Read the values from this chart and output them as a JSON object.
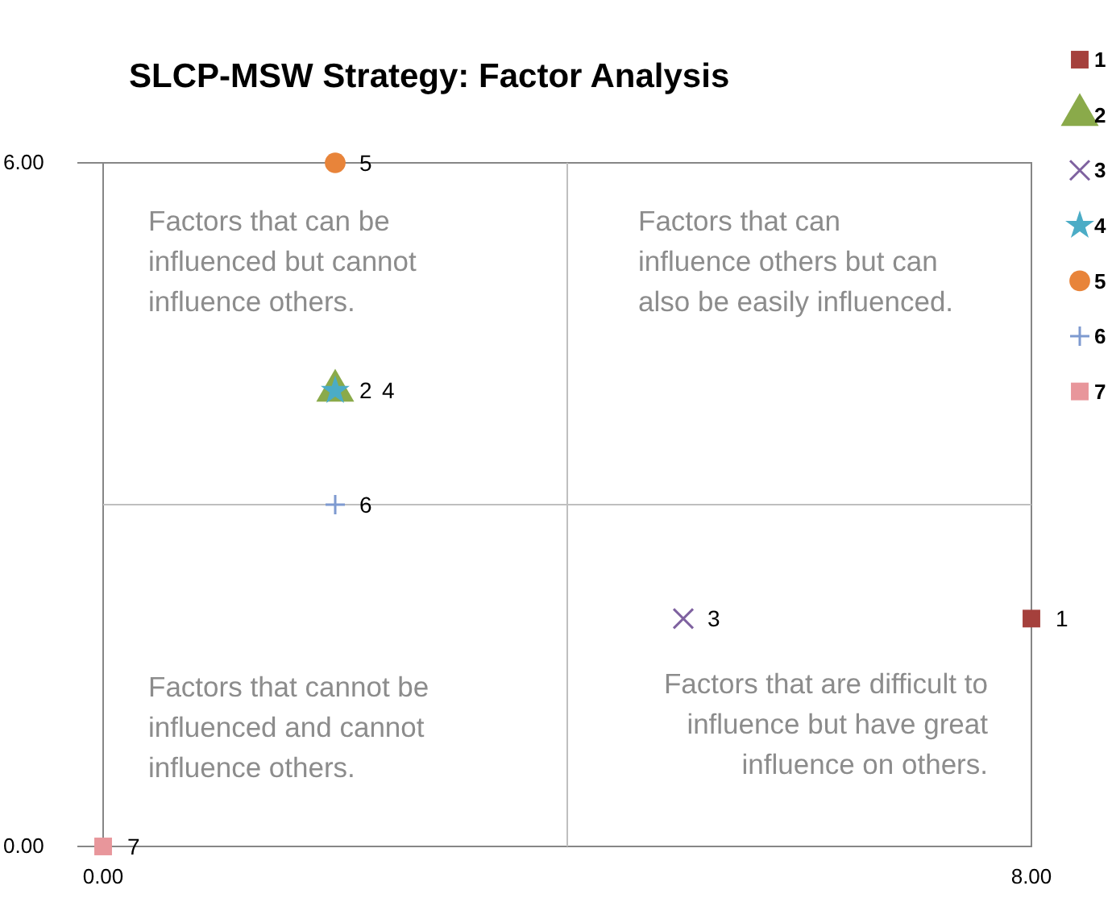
{
  "chart_data": {
    "type": "scatter",
    "title": "SLCP-MSW Strategy: Factor Analysis",
    "xlim": [
      0,
      8
    ],
    "xticks": [
      {
        "value": 0,
        "label": "0.00"
      },
      {
        "value": 8,
        "label": "8.00"
      }
    ],
    "ylim": [
      0,
      6
    ],
    "yticks": [
      {
        "value": 0,
        "label": "0.00"
      },
      {
        "value": 6,
        "label": "6.00"
      }
    ],
    "legend": "top right",
    "ref_lines": [
      {
        "axis": "x",
        "value": 4,
        "color": "#bfbfbf"
      },
      {
        "axis": "y",
        "value": 3,
        "color": "#bfbfbf"
      }
    ],
    "annotations": [
      "Factors that can be\ninfluenced but cannot\ninfluence others.",
      "Factors that can\ninfluence others but can\nalso be easily influenced.",
      "Factors that cannot be\ninfluenced and cannot\ninfluence others.",
      "Factors that are difficult to\ninfluence but have great\ninfluence on others."
    ],
    "series": [
      {
        "name": "1",
        "color": "#a5403c",
        "marker": "square",
        "x": [
          8
        ],
        "values": [
          2
        ]
      },
      {
        "name": "2",
        "color": "#8aaa4a",
        "marker": "triangle",
        "x": [
          2
        ],
        "values": [
          4
        ]
      },
      {
        "name": "3",
        "color": "#7f62a0",
        "marker": "x",
        "x": [
          5
        ],
        "values": [
          2
        ]
      },
      {
        "name": "4",
        "color": "#4bacc6",
        "marker": "star",
        "x": [
          2
        ],
        "values": [
          4
        ]
      },
      {
        "name": "5",
        "color": "#e8843a",
        "marker": "circle",
        "x": [
          2
        ],
        "values": [
          6
        ]
      },
      {
        "name": "6",
        "color": "#7e9ad0",
        "marker": "cross",
        "x": [
          2
        ],
        "values": [
          3
        ]
      },
      {
        "name": "7",
        "color": "#e8969b",
        "marker": "square",
        "x": [
          0
        ],
        "values": [
          0
        ]
      }
    ]
  }
}
